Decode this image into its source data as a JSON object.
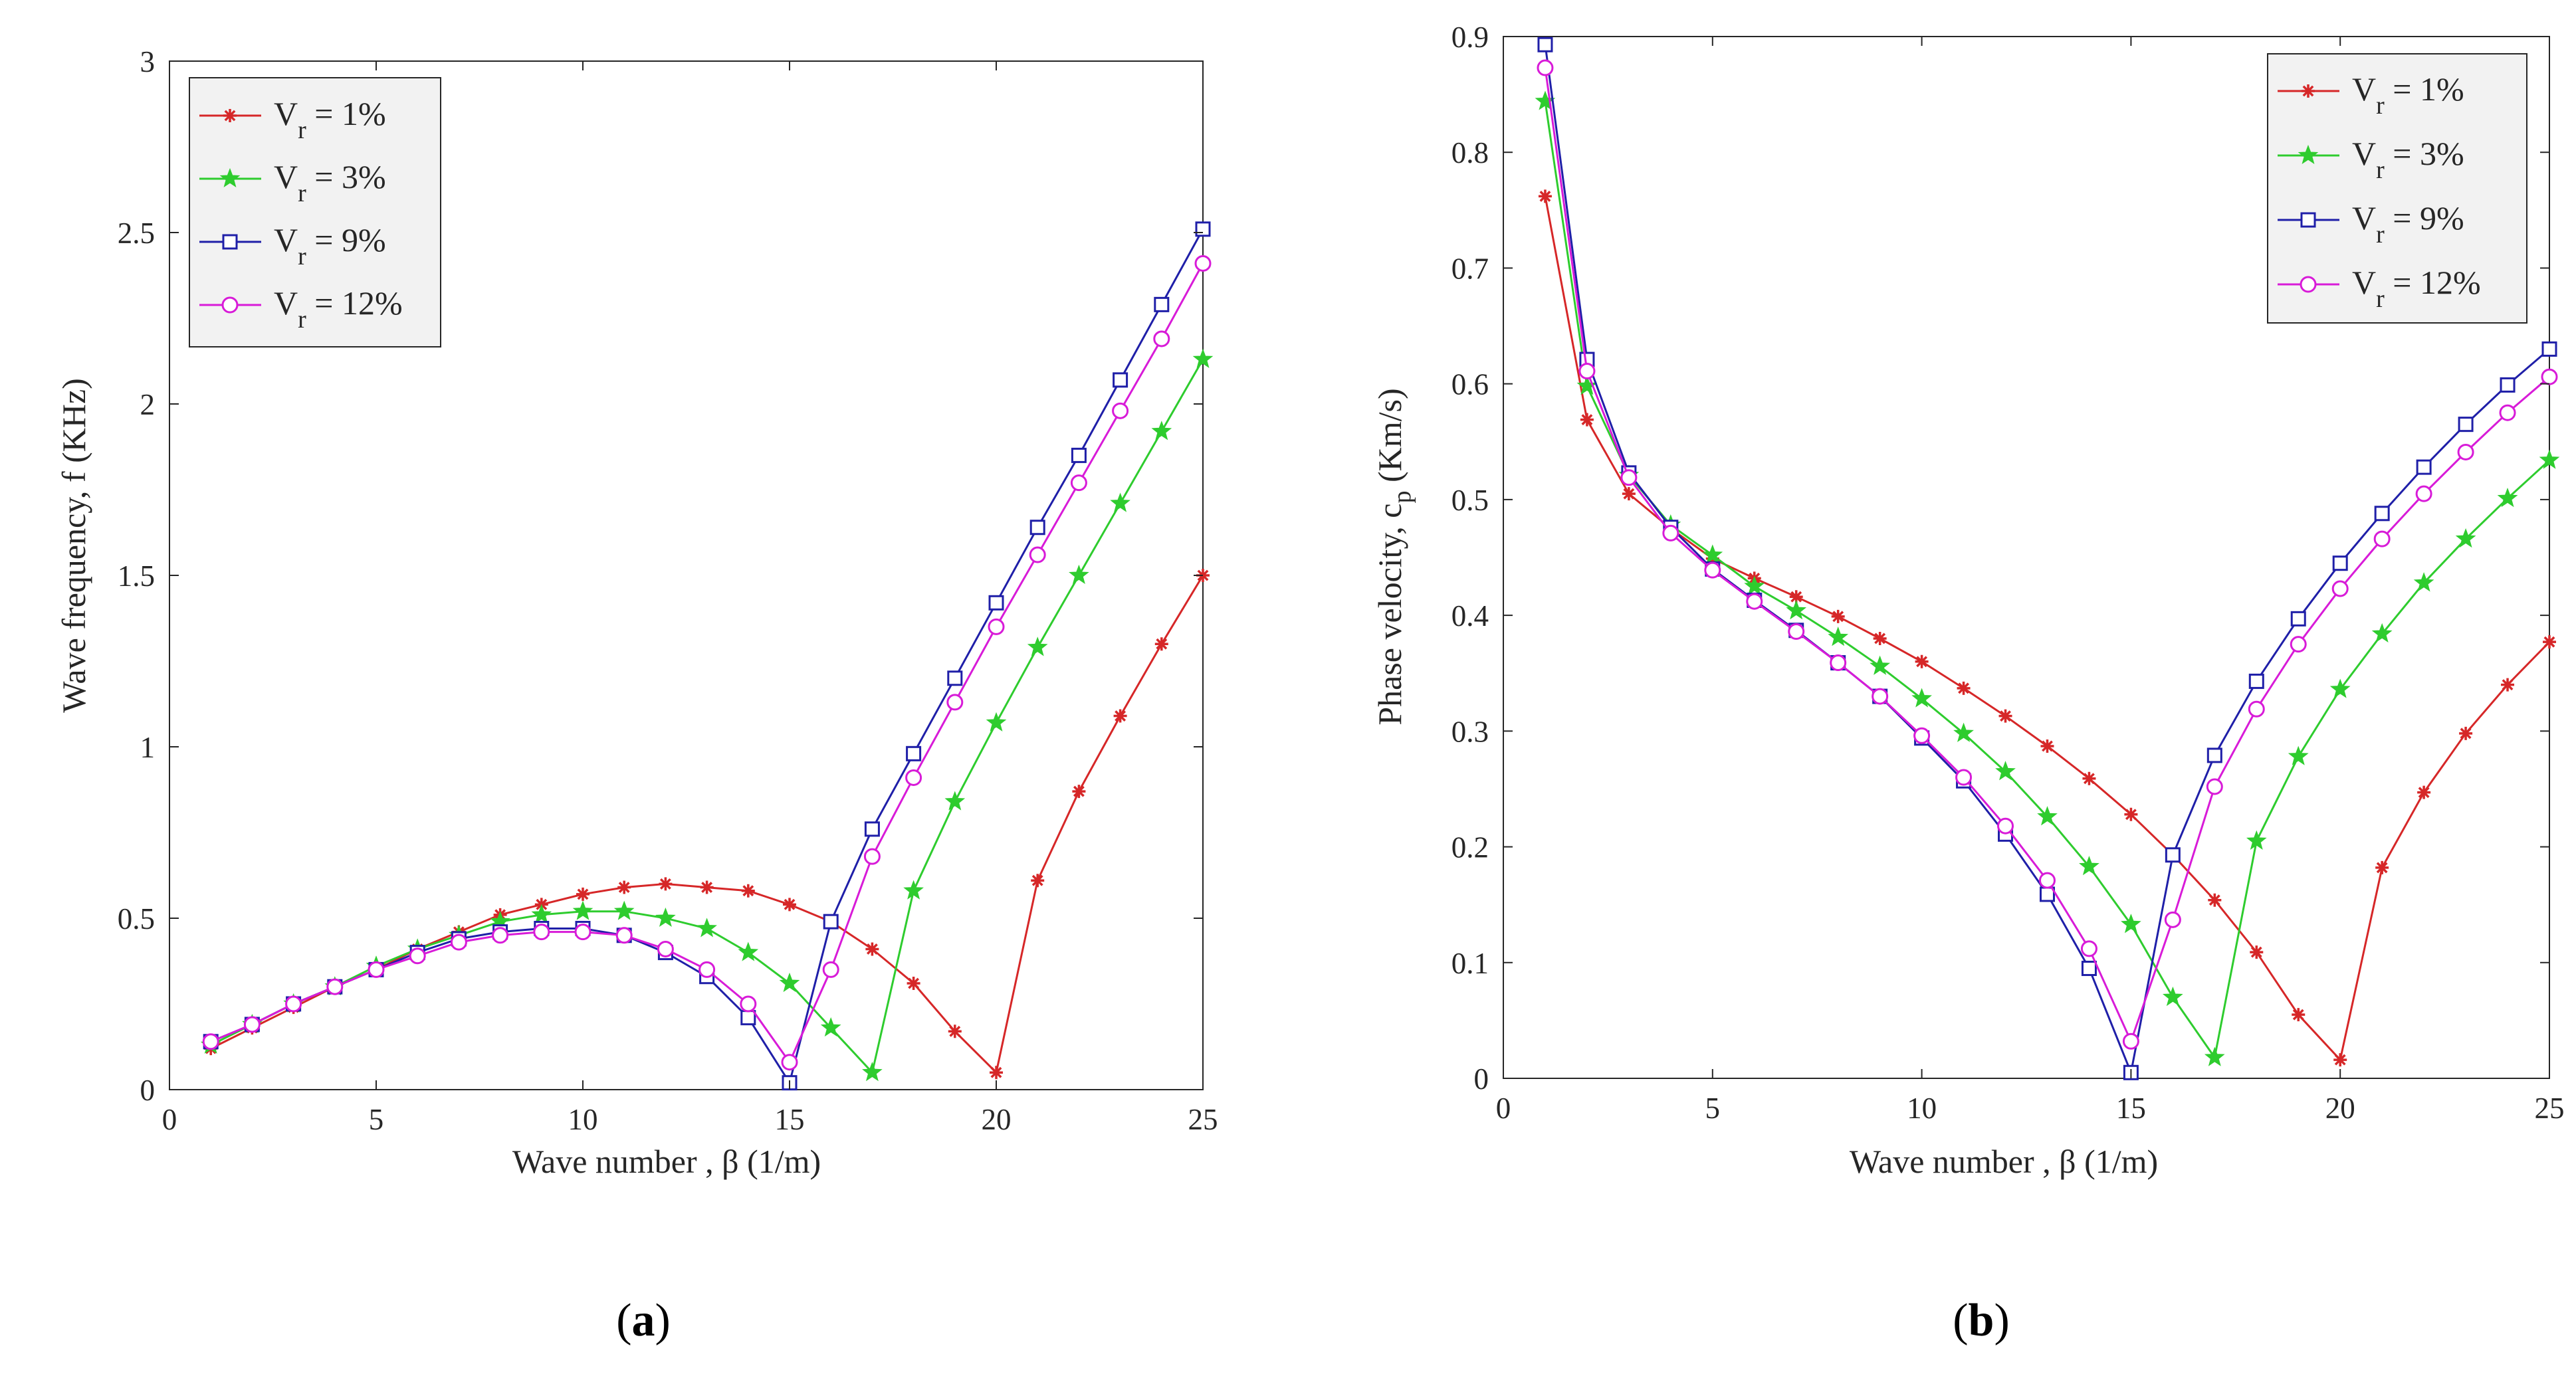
{
  "figure_labels": [
    {
      "open": "(",
      "letter": "a",
      "close": ")"
    },
    {
      "open": "(",
      "letter": "b",
      "close": ")"
    }
  ],
  "chart_data": [
    {
      "type": "line",
      "title": "",
      "xlabel": "Wave number ,  β (1/m)",
      "ylabel": "Wave frequency, f (KHz)",
      "xlim": [
        0,
        25
      ],
      "ylim": [
        0,
        3
      ],
      "xticks": [
        "0",
        "5",
        "10",
        "15",
        "20",
        "25"
      ],
      "yticks": [
        "0",
        "0.5",
        "1",
        "1.5",
        "2",
        "2.5",
        "3"
      ],
      "grid": false,
      "legend_position": "top-left",
      "x": [
        1,
        2,
        3,
        4,
        5,
        6,
        7,
        8,
        9,
        10,
        11,
        12,
        13,
        14,
        15,
        16,
        17,
        18,
        19,
        20,
        21,
        22,
        23,
        24,
        25
      ],
      "series": [
        {
          "name": "V_r = 1%",
          "label_main": "V",
          "label_sub": "r",
          "label_rest": " = 1%",
          "color": "#d62728",
          "marker": "asterisk",
          "values": [
            0.12,
            0.18,
            0.24,
            0.3,
            0.35,
            0.41,
            0.46,
            0.51,
            0.54,
            0.57,
            0.59,
            0.6,
            0.59,
            0.58,
            0.54,
            0.49,
            0.41,
            0.31,
            0.17,
            0.05,
            0.61,
            0.87,
            1.09,
            1.3,
            1.5
          ]
        },
        {
          "name": "V_r = 3%",
          "label_main": "V",
          "label_sub": "r",
          "label_rest": " = 3%",
          "color": "#2ecc2e",
          "marker": "star",
          "values": [
            0.13,
            0.19,
            0.25,
            0.3,
            0.36,
            0.41,
            0.45,
            0.49,
            0.51,
            0.52,
            0.52,
            0.5,
            0.47,
            0.4,
            0.31,
            0.18,
            0.05,
            0.58,
            0.84,
            1.07,
            1.29,
            1.5,
            1.71,
            1.92,
            2.13
          ]
        },
        {
          "name": "V_r = 9%",
          "label_main": "V",
          "label_sub": "r",
          "label_rest": " = 9%",
          "color": "#1f1fa8",
          "marker": "square",
          "values": [
            0.14,
            0.19,
            0.25,
            0.3,
            0.35,
            0.4,
            0.44,
            0.46,
            0.47,
            0.47,
            0.45,
            0.4,
            0.33,
            0.21,
            0.02,
            0.49,
            0.76,
            0.98,
            1.2,
            1.42,
            1.64,
            1.85,
            2.07,
            2.29,
            2.51
          ]
        },
        {
          "name": "V_r = 12%",
          "label_main": "V",
          "label_sub": "r",
          "label_rest": " = 12%",
          "color": "#d81bd8",
          "marker": "circle",
          "values": [
            0.14,
            0.19,
            0.25,
            0.3,
            0.35,
            0.39,
            0.43,
            0.45,
            0.46,
            0.46,
            0.45,
            0.41,
            0.35,
            0.25,
            0.08,
            0.35,
            0.68,
            0.91,
            1.13,
            1.35,
            1.56,
            1.77,
            1.98,
            2.19,
            2.41
          ]
        }
      ]
    },
    {
      "type": "line",
      "title": "",
      "xlabel": "Wave number , β (1/m)",
      "ylabel": "Phase velocity, c",
      "ylabel_sub": "p",
      "ylabel_rest": " (Km/s)",
      "xlim": [
        0,
        25
      ],
      "ylim": [
        0,
        0.9
      ],
      "xticks": [
        "0",
        "5",
        "10",
        "15",
        "20",
        "25"
      ],
      "yticks": [
        "0",
        "0.1",
        "0.2",
        "0.3",
        "0.4",
        "0.5",
        "0.6",
        "0.7",
        "0.8",
        "0.9"
      ],
      "grid": false,
      "legend_position": "top-right",
      "x": [
        1,
        2,
        3,
        4,
        5,
        6,
        7,
        8,
        9,
        10,
        11,
        12,
        13,
        14,
        15,
        16,
        17,
        18,
        19,
        20,
        21,
        22,
        23,
        24,
        25
      ],
      "series": [
        {
          "name": "V_r = 1%",
          "label_main": "V",
          "label_sub": "r",
          "label_rest": " = 1%",
          "color": "#d62728",
          "marker": "asterisk",
          "values": [
            0.762,
            0.569,
            0.505,
            0.475,
            0.449,
            0.432,
            0.416,
            0.399,
            0.38,
            0.36,
            0.337,
            0.313,
            0.287,
            0.259,
            0.228,
            0.193,
            0.154,
            0.109,
            0.055,
            0.016,
            0.182,
            0.247,
            0.298,
            0.34,
            0.377
          ]
        },
        {
          "name": "V_r = 3%",
          "label_main": "V",
          "label_sub": "r",
          "label_rest": " = 3%",
          "color": "#2ecc2e",
          "marker": "star",
          "values": [
            0.844,
            0.598,
            0.521,
            0.478,
            0.452,
            0.425,
            0.404,
            0.381,
            0.356,
            0.328,
            0.298,
            0.265,
            0.226,
            0.183,
            0.133,
            0.07,
            0.018,
            0.205,
            0.278,
            0.336,
            0.384,
            0.428,
            0.466,
            0.501,
            0.534
          ]
        },
        {
          "name": "V_r = 9%",
          "label_main": "V",
          "label_sub": "r",
          "label_rest": " = 9%",
          "color": "#1f1fa8",
          "marker": "square",
          "values": [
            0.893,
            0.621,
            0.523,
            0.476,
            0.44,
            0.413,
            0.387,
            0.359,
            0.33,
            0.294,
            0.257,
            0.211,
            0.159,
            0.095,
            0.005,
            0.193,
            0.279,
            0.343,
            0.397,
            0.445,
            0.488,
            0.528,
            0.565,
            0.599,
            0.63
          ]
        },
        {
          "name": "V_r = 12%",
          "label_main": "V",
          "label_sub": "r",
          "label_rest": " = 12%",
          "color": "#d81bd8",
          "marker": "circle",
          "values": [
            0.873,
            0.611,
            0.519,
            0.471,
            0.439,
            0.412,
            0.386,
            0.359,
            0.33,
            0.296,
            0.26,
            0.218,
            0.171,
            0.112,
            0.032,
            0.137,
            0.252,
            0.319,
            0.375,
            0.423,
            0.466,
            0.505,
            0.541,
            0.575,
            0.606
          ]
        }
      ]
    }
  ]
}
